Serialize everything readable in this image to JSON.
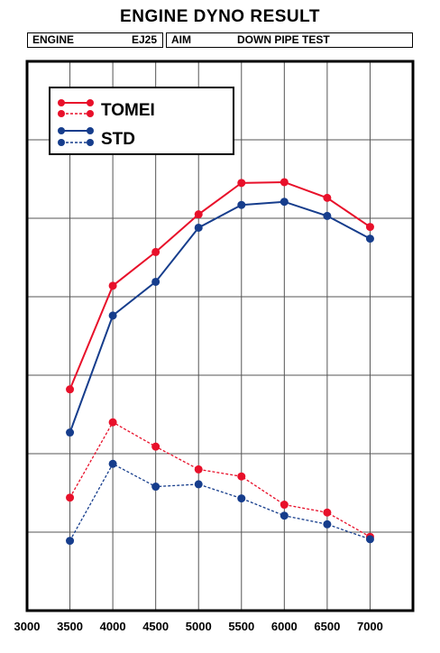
{
  "title": "ENGINE DYNO RESULT",
  "info": {
    "engine_label": "ENGINE",
    "engine_value": "EJ25",
    "aim_label": "AIM",
    "aim_value": "DOWN PIPE TEST"
  },
  "chart_data": {
    "type": "line",
    "title": "ENGINE DYNO RESULT",
    "xlabel": "",
    "ylabel": "",
    "x": [
      3500,
      4000,
      4500,
      5000,
      5500,
      6000,
      6500,
      7000
    ],
    "xlim": [
      3000,
      7500
    ],
    "x_ticks": [
      "3000",
      "3500",
      "4000",
      "4500",
      "5000",
      "5500",
      "6000",
      "6500",
      "7000"
    ],
    "ylim": [
      0,
      700
    ],
    "grid": true,
    "legend": "top-left",
    "series": [
      {
        "name": "TOMEI",
        "group": "upper",
        "style": "solid",
        "color": "#e8102a",
        "values": [
          282,
          414,
          457,
          505,
          545,
          546,
          526,
          489
        ]
      },
      {
        "name": "STD",
        "group": "upper",
        "style": "solid",
        "color": "#163d8c",
        "values": [
          227,
          376,
          419,
          488,
          517,
          521,
          503,
          474
        ]
      },
      {
        "name": "TOMEI",
        "group": "lower",
        "style": "dashed",
        "color": "#e8102a",
        "values": [
          144,
          240,
          209,
          180,
          171,
          135,
          125,
          94
        ]
      },
      {
        "name": "STD",
        "group": "lower",
        "style": "dashed",
        "color": "#163d8c",
        "values": [
          89,
          187,
          158,
          161,
          143,
          121,
          110,
          91
        ]
      }
    ]
  }
}
